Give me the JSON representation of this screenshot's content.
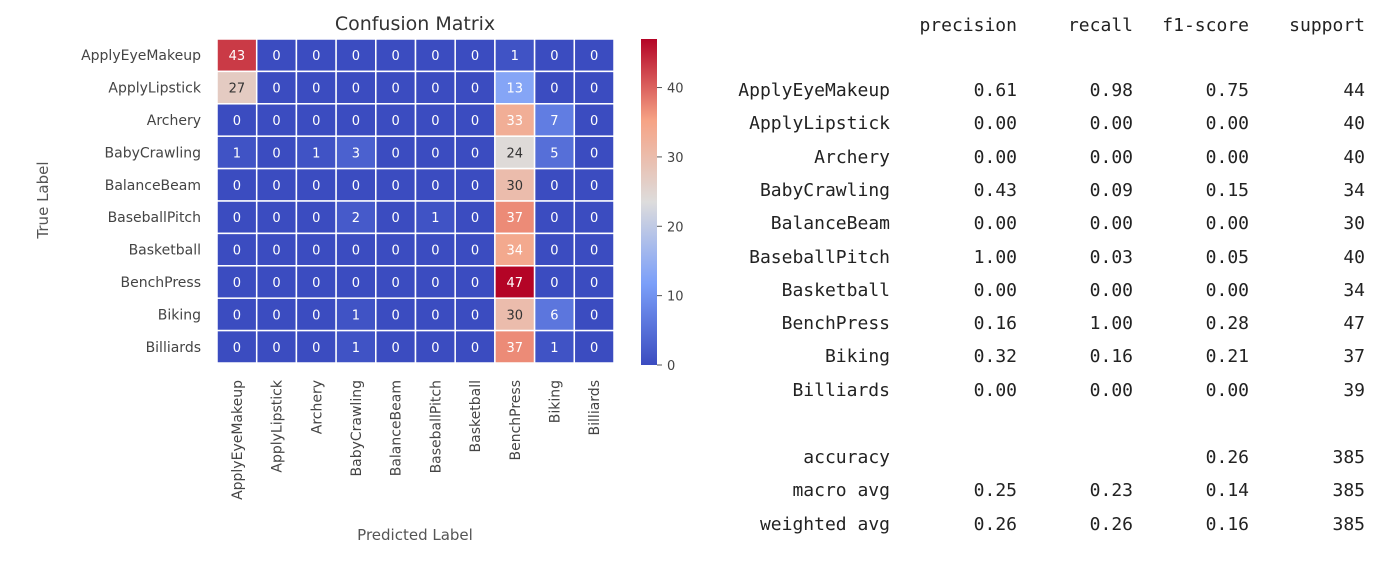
{
  "chart_data": {
    "type": "heatmap",
    "title": "Confusion Matrix",
    "xlabel": "Predicted Label",
    "ylabel": "True Label",
    "rows": [
      "ApplyEyeMakeup",
      "ApplyLipstick",
      "Archery",
      "BabyCrawling",
      "BalanceBeam",
      "BaseballPitch",
      "Basketball",
      "BenchPress",
      "Biking",
      "Billiards"
    ],
    "cols": [
      "ApplyEyeMakeup",
      "ApplyLipstick",
      "Archery",
      "BabyCrawling",
      "BalanceBeam",
      "BaseballPitch",
      "Basketball",
      "BenchPress",
      "Biking",
      "Billiards"
    ],
    "values": [
      [
        43,
        0,
        0,
        0,
        0,
        0,
        0,
        1,
        0,
        0
      ],
      [
        27,
        0,
        0,
        0,
        0,
        0,
        0,
        13,
        0,
        0
      ],
      [
        0,
        0,
        0,
        0,
        0,
        0,
        0,
        33,
        7,
        0
      ],
      [
        1,
        0,
        1,
        3,
        0,
        0,
        0,
        24,
        5,
        0
      ],
      [
        0,
        0,
        0,
        0,
        0,
        0,
        0,
        30,
        0,
        0
      ],
      [
        0,
        0,
        0,
        2,
        0,
        1,
        0,
        37,
        0,
        0
      ],
      [
        0,
        0,
        0,
        0,
        0,
        0,
        0,
        34,
        0,
        0
      ],
      [
        0,
        0,
        0,
        0,
        0,
        0,
        0,
        47,
        0,
        0
      ],
      [
        0,
        0,
        0,
        1,
        0,
        0,
        0,
        30,
        6,
        0
      ],
      [
        0,
        0,
        0,
        1,
        0,
        0,
        0,
        37,
        1,
        0
      ]
    ],
    "colorbar": {
      "ticks": [
        0,
        10,
        20,
        30,
        40
      ],
      "range": [
        0,
        47
      ],
      "colormap": "coolwarm"
    }
  },
  "report": {
    "headers": [
      "precision",
      "recall",
      "f1-score",
      "support"
    ],
    "rows": [
      {
        "label": "ApplyEyeMakeup",
        "precision": "0.61",
        "recall": "0.98",
        "f1": "0.75",
        "support": "44"
      },
      {
        "label": "ApplyLipstick",
        "precision": "0.00",
        "recall": "0.00",
        "f1": "0.00",
        "support": "40"
      },
      {
        "label": "Archery",
        "precision": "0.00",
        "recall": "0.00",
        "f1": "0.00",
        "support": "40"
      },
      {
        "label": "BabyCrawling",
        "precision": "0.43",
        "recall": "0.09",
        "f1": "0.15",
        "support": "34"
      },
      {
        "label": "BalanceBeam",
        "precision": "0.00",
        "recall": "0.00",
        "f1": "0.00",
        "support": "30"
      },
      {
        "label": "BaseballPitch",
        "precision": "1.00",
        "recall": "0.03",
        "f1": "0.05",
        "support": "40"
      },
      {
        "label": "Basketball",
        "precision": "0.00",
        "recall": "0.00",
        "f1": "0.00",
        "support": "34"
      },
      {
        "label": "BenchPress",
        "precision": "0.16",
        "recall": "1.00",
        "f1": "0.28",
        "support": "47"
      },
      {
        "label": "Biking",
        "precision": "0.32",
        "recall": "0.16",
        "f1": "0.21",
        "support": "37"
      },
      {
        "label": "Billiards",
        "precision": "0.00",
        "recall": "0.00",
        "f1": "0.00",
        "support": "39"
      }
    ],
    "summary": [
      {
        "label": "accuracy",
        "precision": "",
        "recall": "",
        "f1": "0.26",
        "support": "385"
      },
      {
        "label": "macro avg",
        "precision": "0.25",
        "recall": "0.23",
        "f1": "0.14",
        "support": "385"
      },
      {
        "label": "weighted avg",
        "precision": "0.26",
        "recall": "0.26",
        "f1": "0.16",
        "support": "385"
      }
    ]
  }
}
